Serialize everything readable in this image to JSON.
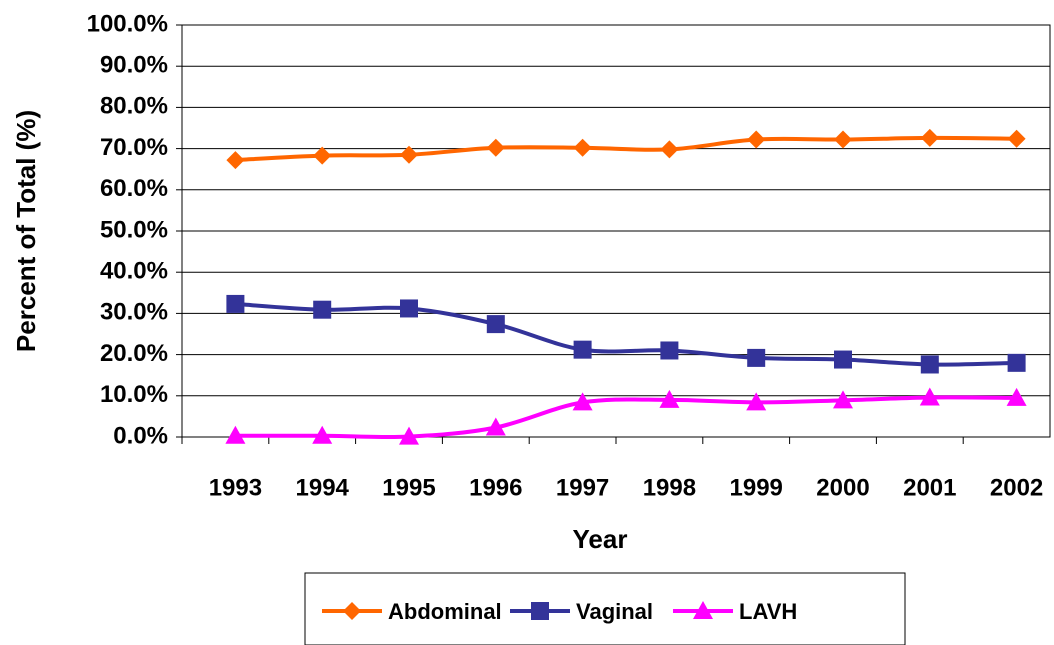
{
  "chart_data": {
    "type": "line",
    "x_label": "Year",
    "y_label": "Percent of Total (%)",
    "categories": [
      "1993",
      "1994",
      "1995",
      "1996",
      "1997",
      "1998",
      "1999",
      "2000",
      "2001",
      "2002"
    ],
    "series": [
      {
        "name": "Abdominal",
        "color": "#ff6600",
        "marker": "diamond",
        "values": [
          67.2,
          68.3,
          68.5,
          70.2,
          70.2,
          69.8,
          72.2,
          72.2,
          72.6,
          72.4
        ]
      },
      {
        "name": "Vaginal",
        "color": "#333399",
        "marker": "square",
        "values": [
          32.3,
          30.9,
          31.2,
          27.4,
          21.2,
          21.0,
          19.2,
          18.8,
          17.6,
          18.0
        ]
      },
      {
        "name": "LAVH",
        "color": "#ff00ff",
        "marker": "triangle",
        "values": [
          0.3,
          0.3,
          0.1,
          2.3,
          8.4,
          9.0,
          8.4,
          8.9,
          9.6,
          9.5
        ]
      }
    ],
    "ylim": [
      0,
      100
    ],
    "yticks": [
      {
        "value": 0,
        "label": "0.0%"
      },
      {
        "value": 10,
        "label": "10.0%"
      },
      {
        "value": 20,
        "label": "20.0%"
      },
      {
        "value": 30,
        "label": "30.0%"
      },
      {
        "value": 40,
        "label": "40.0%"
      },
      {
        "value": 50,
        "label": "50.0%"
      },
      {
        "value": 60,
        "label": "60.0%"
      },
      {
        "value": 70,
        "label": "70.0%"
      },
      {
        "value": 80,
        "label": "80.0%"
      },
      {
        "value": 90,
        "label": "90.0%"
      },
      {
        "value": 100,
        "label": "100.0%"
      }
    ],
    "grid": true,
    "legend": "bottom"
  }
}
